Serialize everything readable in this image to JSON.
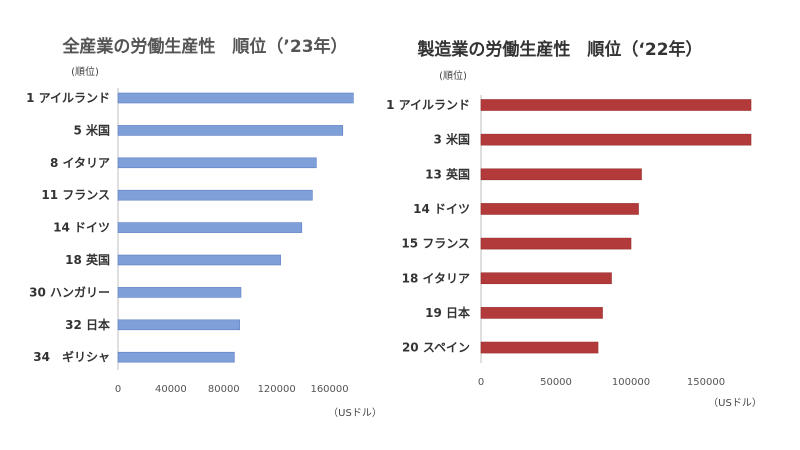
{
  "chart_data": [
    {
      "type": "bar",
      "orientation": "horizontal",
      "title": "全産業の労働生産性　順位（’23年）",
      "rank_caption": "(順位)",
      "unit_label": "（USドル）",
      "categories": [
        "1 アイルランド",
        "5 米国",
        "8 イタリア",
        "11 フランス",
        "14 ドイツ",
        "18 英国",
        "30 ハンガリー",
        "32 日本",
        "34　ギリシャ"
      ],
      "values": [
        178000,
        170000,
        150000,
        147000,
        139000,
        123000,
        93000,
        92000,
        88000
      ],
      "xlim": [
        0,
        180000
      ],
      "xticks": [
        0,
        40000,
        80000,
        120000,
        160000
      ],
      "grid": false,
      "colors": {
        "bar": "#7f9fd8",
        "bar_stroke": "#5b7ec4"
      }
    },
    {
      "type": "bar",
      "orientation": "horizontal",
      "title": "製造業の労働生産性　順位（‘22年）",
      "rank_caption": "(順位)",
      "unit_label": "（USドル）",
      "categories": [
        "1 アイルランド",
        "3 米国",
        "13 英国",
        "14 ドイツ",
        "15 フランス",
        "18 イタリア",
        "19 日本",
        "20 スペイン"
      ],
      "values": [
        180000,
        180000,
        107000,
        105000,
        100000,
        87000,
        81000,
        78000
      ],
      "xlim": [
        0,
        180000
      ],
      "xticks": [
        0,
        50000,
        100000,
        150000
      ],
      "grid": false,
      "colors": {
        "bar": "#b23a3a",
        "bar_stroke": "#9a2e2e"
      }
    }
  ]
}
